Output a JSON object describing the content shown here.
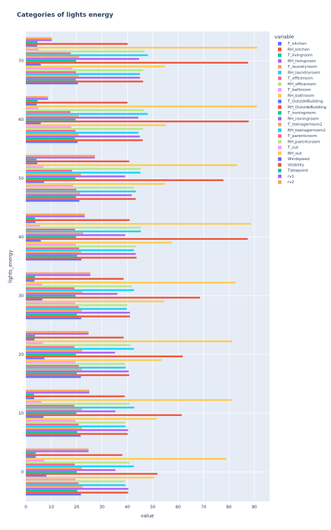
{
  "chart_data": {
    "type": "bar",
    "orientation": "horizontal",
    "barmode": "group",
    "title": "Categories of lights energy",
    "xlabel": "value",
    "ylabel": "lights_energy",
    "xlim": [
      0,
      96
    ],
    "x_ticks": [
      0,
      10,
      20,
      30,
      40,
      50,
      60,
      70,
      80,
      90
    ],
    "categories": [
      0,
      10,
      20,
      30,
      40,
      50,
      60,
      70
    ],
    "legend_title": "variable",
    "legend_position": "right",
    "grid": true,
    "series": [
      {
        "name": "T_kitchen",
        "color": "#636efa",
        "values": [
          21.7,
          21.6,
          21.7,
          21.8,
          21.9,
          21.1,
          20.4,
          20.5
        ]
      },
      {
        "name": "RH_kitchen",
        "color": "#EF553B",
        "values": [
          40.3,
          40.1,
          40.7,
          41.0,
          43.6,
          43.3,
          46.0,
          46.2
        ]
      },
      {
        "name": "T_livingroom",
        "color": "#00cc96",
        "values": [
          20.3,
          20.2,
          20.1,
          20.1,
          20.2,
          19.8,
          19.4,
          19.7
        ]
      },
      {
        "name": "RH_livingroom",
        "color": "#ab63fa",
        "values": [
          40.4,
          40.3,
          40.5,
          41.0,
          43.3,
          41.7,
          44.9,
          45.0
        ]
      },
      {
        "name": "T_laundryroom",
        "color": "#FFA15A",
        "values": [
          22.3,
          22.2,
          22.1,
          22.0,
          21.8,
          21.4,
          20.8,
          20.9
        ]
      },
      {
        "name": "RH_laundryroom",
        "color": "#19d3f3",
        "values": [
          39.2,
          39.2,
          39.3,
          39.8,
          42.6,
          43.4,
          44.4,
          44.9
        ]
      },
      {
        "name": "T_officeroom",
        "color": "#FF6692",
        "values": [
          20.8,
          20.8,
          20.9,
          20.9,
          21.0,
          19.9,
          19.6,
          19.8
        ]
      },
      {
        "name": "RH_officeroom",
        "color": "#B6E880",
        "values": [
          38.9,
          39.1,
          39.0,
          40.0,
          43.5,
          42.7,
          46.2,
          46.3
        ]
      },
      {
        "name": "T_bathroom",
        "color": "#FF97FF",
        "values": [
          19.6,
          19.5,
          19.6,
          19.5,
          19.8,
          18.6,
          17.9,
          18.2
        ]
      },
      {
        "name": "RH_bathroom",
        "color": "#FECB52",
        "values": [
          50.5,
          51.6,
          53.5,
          54.4,
          57.5,
          54.8,
          55.1,
          54.9
        ]
      },
      {
        "name": "T_OutsideBuilding",
        "color": "#636efa",
        "values": [
          8.1,
          7.0,
          7.3,
          6.5,
          5.9,
          7.2,
          5.9,
          5.9
        ]
      },
      {
        "name": "RH_OutsideBuilding",
        "color": "#EF553B",
        "values": [
          51.8,
          61.4,
          61.8,
          68.6,
          87.4,
          77.8,
          87.8,
          87.5
        ]
      },
      {
        "name": "T_ironingroom",
        "color": "#00cc96",
        "values": [
          20.1,
          19.9,
          19.7,
          19.6,
          19.8,
          19.6,
          19.6,
          19.8
        ]
      },
      {
        "name": "RH_ironingroom",
        "color": "#ab63fa",
        "values": [
          35.3,
          35.3,
          35.1,
          36.1,
          39.1,
          39.1,
          44.3,
          44.6
        ]
      },
      {
        "name": "T_teenagerroom2",
        "color": "#FFA15A",
        "values": [
          22.2,
          22.2,
          22.2,
          22.3,
          22.6,
          21.7,
          20.9,
          21.0
        ]
      },
      {
        "name": "RH_teenagerroom2",
        "color": "#19d3f3",
        "values": [
          42.5,
          42.7,
          42.6,
          42.7,
          45.3,
          45.1,
          48.0,
          48.1
        ]
      },
      {
        "name": "T_parentsroom",
        "color": "#FF6692",
        "values": [
          19.2,
          19.1,
          19.1,
          19.1,
          19.4,
          18.2,
          17.6,
          17.7
        ]
      },
      {
        "name": "RH_parentsroom",
        "color": "#B6E880",
        "values": [
          40.9,
          40.9,
          41.2,
          41.7,
          45.2,
          45.2,
          46.4,
          46.7
        ]
      },
      {
        "name": "T_out",
        "color": "#FF97FF",
        "values": [
          7.3,
          6.2,
          6.8,
          6.4,
          5.5,
          6.9,
          5.0,
          5.0
        ]
      },
      {
        "name": "RH_out",
        "color": "#FECB52",
        "values": [
          79.0,
          81.0,
          81.3,
          82.6,
          88.7,
          83.2,
          91.0,
          91.2
        ]
      },
      {
        "name": "Windspeed",
        "color": "#636efa",
        "values": [
          3.9,
          3.3,
          3.4,
          3.4,
          3.8,
          4.5,
          4.3,
          4.5
        ]
      },
      {
        "name": "Visibility",
        "color": "#EF553B",
        "values": [
          38.0,
          38.9,
          38.5,
          38.5,
          40.9,
          40.7,
          40.0,
          40.1
        ]
      },
      {
        "name": "Tdewpoint",
        "color": "#00cc96",
        "values": [
          3.9,
          3.2,
          3.6,
          3.6,
          3.6,
          4.2,
          4.6,
          4.6
        ]
      },
      {
        "name": "rv1",
        "color": "#ab63fa",
        "values": [
          24.7,
          25.0,
          24.7,
          25.4,
          23.2,
          27.2,
          8.7,
          10.2
        ]
      },
      {
        "name": "rv2",
        "color": "#FFA15A",
        "values": [
          24.7,
          25.0,
          24.7,
          25.4,
          23.2,
          27.2,
          8.7,
          10.2
        ]
      }
    ]
  }
}
